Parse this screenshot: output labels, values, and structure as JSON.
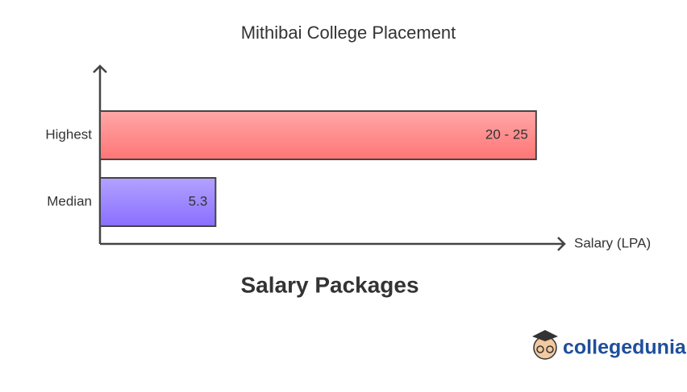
{
  "chart_data": {
    "type": "hbar",
    "title": "Mithibai College Placement",
    "subtitle": "Salary Packages",
    "x_label": "Salary (LPA)",
    "categories": [
      "Highest",
      "Median"
    ],
    "values": [
      20,
      5.3
    ],
    "value_labels": [
      "20 - 25",
      "5.3"
    ],
    "colors": [
      "#ff7676",
      "#8a6fff"
    ],
    "xlim": [
      0,
      21.3
    ],
    "brand": "collegedunia"
  }
}
